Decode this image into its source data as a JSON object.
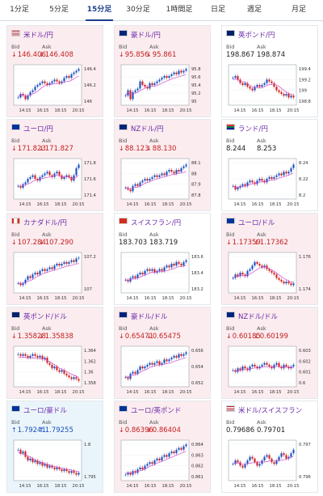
{
  "tabs": [
    {
      "label": "1分足",
      "active": false
    },
    {
      "label": "5分足",
      "active": false
    },
    {
      "label": "15分足",
      "active": true
    },
    {
      "label": "30分足",
      "active": false
    },
    {
      "label": "1時間足",
      "active": false
    },
    {
      "label": "日足",
      "active": false
    },
    {
      "label": "週足",
      "active": false
    },
    {
      "label": "月足",
      "active": false
    }
  ],
  "labels": {
    "bid": "Bid",
    "ask": "Ask"
  },
  "colors": {
    "bull": "#1a4fbf",
    "bear": "#d02020",
    "ma": "#d04ac8",
    "up_text": "#1a4fbf",
    "down_text": "#c41f1f"
  },
  "pairs": [
    {
      "name": "米ドル/円",
      "flag": "us",
      "dir": "down",
      "bid": "146.406",
      "ask": "146.408",
      "ticks": [
        "146.4",
        "146.2",
        "146"
      ],
      "times": [
        "14:15",
        "16:15",
        "18:15",
        "20:15"
      ]
    },
    {
      "name": "豪ドル/円",
      "flag": "au",
      "dir": "down",
      "bid": "95.856",
      "ask": "95.861",
      "ticks": [
        "95.8",
        "95.6",
        "95.4",
        "95.2",
        "95"
      ],
      "times": [
        "14:15",
        "16:15",
        "18:15",
        "20:15"
      ]
    },
    {
      "name": "英ポンド/円",
      "flag": "gb",
      "dir": "flat",
      "bid": "198.867",
      "ask": "198.874",
      "ticks": [
        "199.4",
        "199.2",
        "199",
        "198.8"
      ],
      "times": [
        "14:15",
        "16:15",
        "18:15",
        "20:15"
      ]
    },
    {
      "name": "ユーロ/円",
      "flag": "eu",
      "dir": "down",
      "bid": "171.823",
      "ask": "171.827",
      "ticks": [
        "171.8",
        "171.6",
        "171.4"
      ],
      "times": [
        "14:15",
        "16:15",
        "18:15",
        "20:15"
      ]
    },
    {
      "name": "NZドル/円",
      "flag": "nz",
      "dir": "down",
      "bid": "88.123",
      "ask": "88.130",
      "ticks": [
        "88.1",
        "88",
        "87.9",
        "87.8"
      ],
      "times": [
        "14:15",
        "16:15",
        "18:15",
        "20:15"
      ]
    },
    {
      "name": "ランド/円",
      "flag": "za",
      "dir": "flat",
      "bid": "8.244",
      "ask": "8.253",
      "ticks": [
        "8.24",
        "8.22",
        "8.2"
      ],
      "times": [
        "14:15",
        "16:15",
        "18:15",
        "20:15"
      ]
    },
    {
      "name": "カナダドル/円",
      "flag": "ca",
      "dir": "down",
      "bid": "107.284",
      "ask": "107.290",
      "ticks": [
        "107.2",
        "107"
      ],
      "times": [
        "14:15",
        "16:15",
        "18:15",
        "20:15"
      ]
    },
    {
      "name": "スイスフラン/円",
      "flag": "ch",
      "dir": "flat",
      "bid": "183.703",
      "ask": "183.719",
      "ticks": [
        "183.6",
        "183.4",
        "183.2"
      ],
      "times": [
        "14:15",
        "16:15",
        "18:15",
        "20:15"
      ]
    },
    {
      "name": "ユーロ/ドル",
      "flag": "eu",
      "dir": "down",
      "bid": "1.17359",
      "ask": "1.17362",
      "ticks": [
        "1.176",
        "1.174"
      ],
      "times": [
        "14:15",
        "16:15",
        "18:15",
        "20:15"
      ]
    },
    {
      "name": "英ポンド/ドル",
      "flag": "gb",
      "dir": "down",
      "bid": "1.35828",
      "ask": "1.35838",
      "ticks": [
        "1.364",
        "1.362",
        "1.36",
        "1.358"
      ],
      "times": [
        "14:15",
        "16:15",
        "18:15",
        "20:15"
      ]
    },
    {
      "name": "豪ドル/ドル",
      "flag": "au",
      "dir": "down",
      "bid": "0.65471",
      "ask": "0.65475",
      "ticks": [
        "0.656",
        "0.654",
        "0.652"
      ],
      "times": [
        "14:15",
        "16:15",
        "18:15",
        "20:15"
      ]
    },
    {
      "name": "NZドル/ドル",
      "flag": "nz",
      "dir": "down",
      "bid": "0.60185",
      "ask": "0.60199",
      "ticks": [
        "0.603",
        "0.602",
        "0.601",
        "0.6"
      ],
      "times": [
        "14:15",
        "16:15",
        "18:15",
        "20:15"
      ]
    },
    {
      "name": "ユーロ/豪ドル",
      "flag": "eu",
      "dir": "up",
      "bid": "1.79241",
      "ask": "1.79255",
      "ticks": [
        "1.8",
        "1.795"
      ],
      "times": [
        "14:15",
        "16:15",
        "18:15",
        "20:15"
      ]
    },
    {
      "name": "ユーロ/英ポンド",
      "flag": "eu",
      "dir": "down",
      "bid": "0.86396",
      "ask": "0.86404",
      "ticks": [
        "0.864",
        "0.863",
        "0.862",
        "0.861"
      ],
      "times": [
        "14:15",
        "16:15",
        "18:15",
        "20:15"
      ]
    },
    {
      "name": "米ドル/スイスフラン",
      "flag": "us",
      "dir": "flat",
      "bid": "0.79686",
      "ask": "0.79701",
      "ticks": [
        "0.797",
        "0.796"
      ],
      "times": [
        "14:15",
        "16:15",
        "18:15",
        "20:15"
      ]
    }
  ],
  "shapes": [
    {
      "start": 0.15,
      "pts": [
        0.15,
        0.25,
        0.2,
        0.1,
        0.2,
        0.3,
        0.35,
        0.45,
        0.5,
        0.55,
        0.6,
        0.55,
        0.5,
        0.55,
        0.6,
        0.65,
        0.6,
        0.55,
        0.6,
        0.7,
        0.75,
        0.7,
        0.8,
        0.85,
        0.9,
        0.95
      ]
    },
    {
      "start": 0.2,
      "pts": [
        0.2,
        0.35,
        0.1,
        0.3,
        0.35,
        0.4,
        0.6,
        0.5,
        0.45,
        0.4,
        0.55,
        0.5,
        0.55,
        0.6,
        0.65,
        0.7,
        0.75,
        0.7,
        0.75,
        0.8,
        0.85,
        0.8,
        0.9,
        0.85,
        0.9,
        0.95
      ]
    },
    {
      "start": 0.7,
      "pts": [
        0.7,
        0.75,
        0.65,
        0.55,
        0.5,
        0.55,
        0.45,
        0.4,
        0.35,
        0.45,
        0.5,
        0.45,
        0.5,
        0.55,
        0.65,
        0.6,
        0.55,
        0.45,
        0.35,
        0.3,
        0.25,
        0.2,
        0.25,
        0.15,
        0.2,
        0.15
      ]
    },
    {
      "start": 0.3,
      "pts": [
        0.3,
        0.25,
        0.35,
        0.4,
        0.5,
        0.55,
        0.6,
        0.5,
        0.45,
        0.55,
        0.6,
        0.65,
        0.7,
        0.6,
        0.55,
        0.65,
        0.7,
        0.6,
        0.5,
        0.55,
        0.6,
        0.55,
        0.45,
        0.6,
        0.8,
        0.9
      ]
    },
    {
      "start": 0.25,
      "pts": [
        0.25,
        0.2,
        0.15,
        0.3,
        0.35,
        0.3,
        0.4,
        0.45,
        0.5,
        0.45,
        0.5,
        0.55,
        0.6,
        0.55,
        0.6,
        0.65,
        0.6,
        0.7,
        0.75,
        0.7,
        0.65,
        0.75,
        0.7,
        0.8,
        0.85,
        0.9
      ]
    },
    {
      "start": 0.3,
      "pts": [
        0.3,
        0.2,
        0.25,
        0.3,
        0.35,
        0.3,
        0.4,
        0.45,
        0.4,
        0.35,
        0.45,
        0.5,
        0.45,
        0.4,
        0.5,
        0.55,
        0.5,
        0.55,
        0.6,
        0.65,
        0.6,
        0.7,
        0.65,
        0.7,
        0.8,
        0.9
      ]
    },
    {
      "start": 0.2,
      "pts": [
        0.2,
        0.15,
        0.2,
        0.3,
        0.4,
        0.35,
        0.45,
        0.5,
        0.45,
        0.55,
        0.6,
        0.55,
        0.6,
        0.65,
        0.6,
        0.7,
        0.75,
        0.7,
        0.75,
        0.8,
        0.75,
        0.8,
        0.85,
        0.8,
        0.9,
        0.92
      ]
    },
    {
      "start": 0.3,
      "pts": [
        0.3,
        0.25,
        0.35,
        0.4,
        0.35,
        0.45,
        0.5,
        0.45,
        0.55,
        0.6,
        0.55,
        0.6,
        0.5,
        0.55,
        0.6,
        0.55,
        0.65,
        0.7,
        0.65,
        0.75,
        0.7,
        0.8,
        0.75,
        0.7,
        0.8,
        0.85
      ]
    },
    {
      "start": 0.35,
      "pts": [
        0.35,
        0.45,
        0.4,
        0.5,
        0.45,
        0.4,
        0.55,
        0.6,
        0.7,
        0.8,
        0.75,
        0.7,
        0.65,
        0.7,
        0.6,
        0.55,
        0.5,
        0.45,
        0.35,
        0.3,
        0.25,
        0.2,
        0.25,
        0.2,
        0.15,
        0.2
      ]
    },
    {
      "start": 0.85,
      "pts": [
        0.85,
        0.8,
        0.85,
        0.8,
        0.75,
        0.8,
        0.85,
        0.8,
        0.75,
        0.8,
        0.7,
        0.75,
        0.6,
        0.55,
        0.45,
        0.5,
        0.4,
        0.35,
        0.4,
        0.3,
        0.25,
        0.2,
        0.15,
        0.2,
        0.15,
        0.1
      ]
    },
    {
      "start": 0.2,
      "pts": [
        0.2,
        0.15,
        0.3,
        0.35,
        0.3,
        0.4,
        0.5,
        0.45,
        0.5,
        0.55,
        0.6,
        0.55,
        0.6,
        0.65,
        0.55,
        0.6,
        0.7,
        0.65,
        0.7,
        0.75,
        0.8,
        0.75,
        0.85,
        0.8,
        0.85,
        0.9
      ]
    },
    {
      "start": 0.4,
      "pts": [
        0.4,
        0.35,
        0.45,
        0.4,
        0.5,
        0.45,
        0.4,
        0.5,
        0.55,
        0.5,
        0.45,
        0.5,
        0.55,
        0.6,
        0.55,
        0.5,
        0.45,
        0.55,
        0.6,
        0.5,
        0.45,
        0.55,
        0.5,
        0.45,
        0.5,
        0.55
      ]
    },
    {
      "start": 0.8,
      "pts": [
        0.8,
        0.7,
        0.75,
        0.6,
        0.5,
        0.55,
        0.45,
        0.5,
        0.4,
        0.45,
        0.35,
        0.4,
        0.3,
        0.35,
        0.3,
        0.25,
        0.3,
        0.25,
        0.2,
        0.25,
        0.2,
        0.15,
        0.2,
        0.15,
        0.1,
        0.15
      ]
    },
    {
      "start": 0.1,
      "pts": [
        0.1,
        0.15,
        0.1,
        0.2,
        0.15,
        0.25,
        0.3,
        0.25,
        0.35,
        0.4,
        0.45,
        0.4,
        0.5,
        0.55,
        0.5,
        0.6,
        0.65,
        0.6,
        0.7,
        0.75,
        0.7,
        0.8,
        0.85,
        0.8,
        0.9,
        0.95
      ]
    },
    {
      "start": 0.4,
      "pts": [
        0.4,
        0.5,
        0.45,
        0.35,
        0.3,
        0.4,
        0.5,
        0.6,
        0.55,
        0.45,
        0.35,
        0.4,
        0.5,
        0.6,
        0.65,
        0.55,
        0.45,
        0.4,
        0.5,
        0.6,
        0.7,
        0.65,
        0.55,
        0.6,
        0.7,
        0.8
      ]
    }
  ]
}
